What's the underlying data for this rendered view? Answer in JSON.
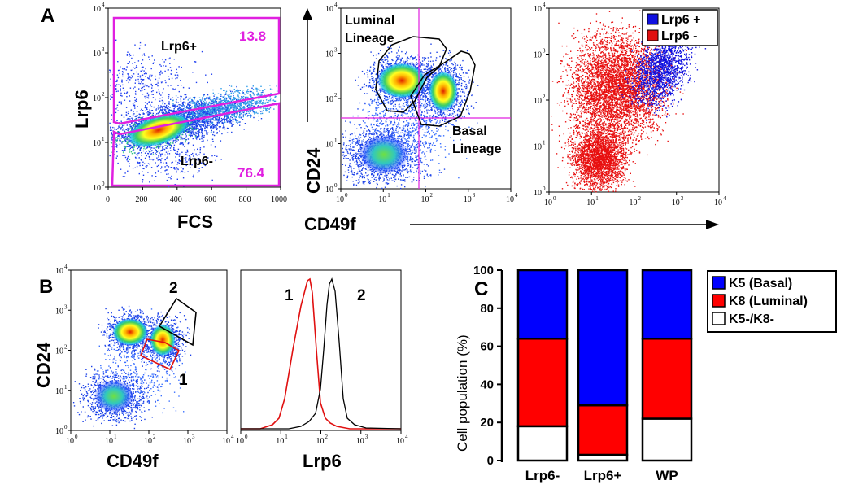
{
  "panels": {
    "A": {
      "letter": "A",
      "plot1": {
        "xlabel": "FCS",
        "ylabel": "Lrp6",
        "xticks": [
          "0",
          "200",
          "400",
          "600",
          "800",
          "1000"
        ],
        "gates": [
          {
            "label": "Lrp6+",
            "percent": "13.8"
          },
          {
            "label": "Lrp6-",
            "percent": "76.4"
          }
        ]
      },
      "plot2": {
        "xlabel": "CD49f",
        "ylabel": "CD24",
        "gates": [
          {
            "label_line1": "Luminal",
            "label_line2": "Lineage"
          },
          {
            "label_line1": "Basal",
            "label_line2": "Lineage"
          }
        ]
      },
      "plot3": {
        "legend": [
          {
            "label": "Lrp6 +",
            "color": "#1010e0"
          },
          {
            "label": "Lrp6 -",
            "color": "#e01010"
          }
        ]
      }
    },
    "B": {
      "letter": "B",
      "plot1": {
        "xlabel": "CD49f",
        "ylabel": "CD24",
        "gate_labels": [
          "2",
          "1"
        ]
      },
      "plot2": {
        "xlabel": "Lrp6",
        "curve_labels": [
          "1",
          "2"
        ]
      }
    },
    "C": {
      "letter": "C"
    }
  },
  "log_ticks": {
    "base": "10",
    "exponents": [
      "0",
      "1",
      "2",
      "3",
      "4"
    ]
  },
  "chart_data": {
    "type": "bar",
    "stacked": true,
    "categories": [
      "Lrp6-",
      "Lrp6+",
      "WP"
    ],
    "series": [
      {
        "name": "K5-/K8-",
        "color": "#ffffff",
        "values": [
          18,
          3,
          22
        ]
      },
      {
        "name": "K8 (Luminal)",
        "color": "#ff0000",
        "values": [
          46,
          26,
          42
        ]
      },
      {
        "name": "K5 (Basal)",
        "color": "#0000ff",
        "values": [
          36,
          71,
          36
        ]
      }
    ],
    "legend_order": [
      "K5 (Basal)",
      "K8 (Luminal)",
      "K5-/K8-"
    ],
    "ylabel": "Cell population (%)",
    "yticks": [
      "0",
      "20",
      "40",
      "60",
      "80",
      "100"
    ],
    "ylim": [
      0,
      100
    ],
    "legend_position": "top-right"
  }
}
